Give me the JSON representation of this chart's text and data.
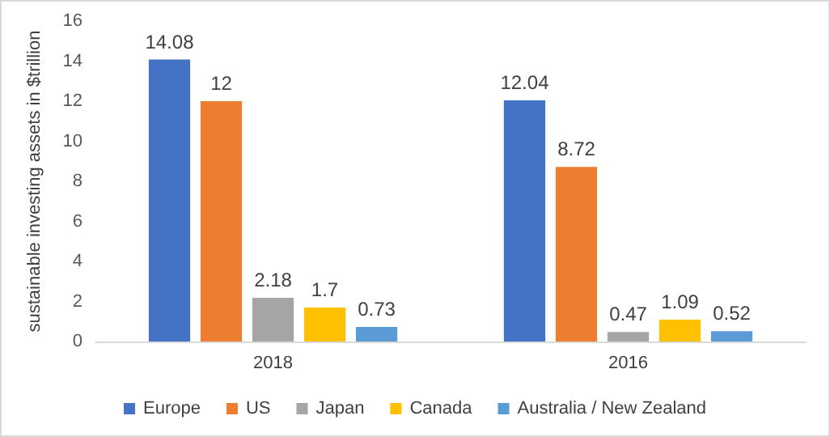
{
  "chart_data": {
    "type": "bar",
    "ylabel": "sustainable investing assets in $trillion",
    "categories": [
      "2018",
      "2016"
    ],
    "series": [
      {
        "name": "Europe",
        "color": "#4472c4",
        "values": [
          14.08,
          12.04
        ]
      },
      {
        "name": "US",
        "color": "#ed7d31",
        "values": [
          12,
          8.72
        ]
      },
      {
        "name": "Japan",
        "color": "#a5a5a5",
        "values": [
          2.18,
          0.47
        ]
      },
      {
        "name": "Canada",
        "color": "#ffc000",
        "values": [
          1.7,
          1.09
        ]
      },
      {
        "name": "Australia / New Zealand",
        "color": "#5b9bd5",
        "values": [
          0.73,
          0.52
        ]
      }
    ],
    "ylim": [
      0,
      16
    ],
    "yticks": [
      0,
      2,
      4,
      6,
      8,
      10,
      12,
      14,
      16
    ],
    "grid": false,
    "legend": "bottom",
    "data_labels": true
  }
}
